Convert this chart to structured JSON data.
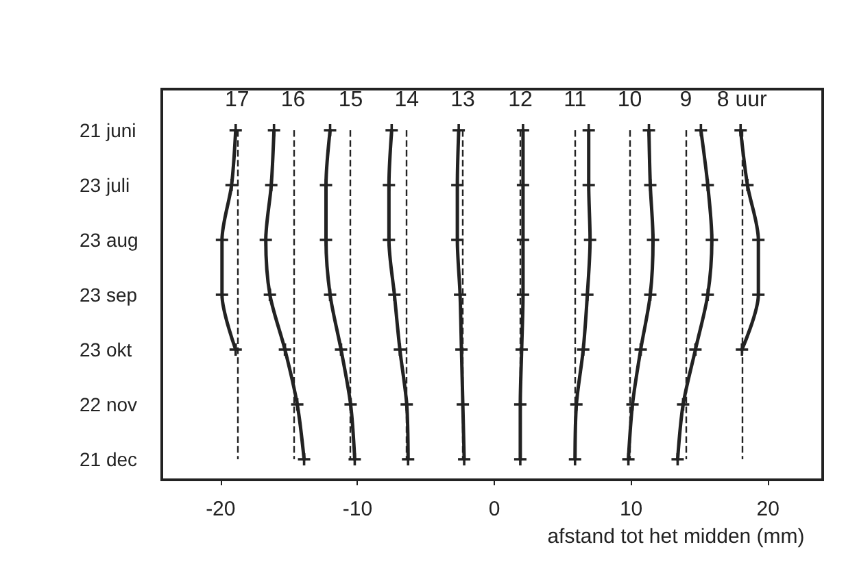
{
  "chart_data": {
    "type": "line",
    "orientation": "horizontal",
    "xlabel": "afstand tot het midden (mm)",
    "annotations": [
      "17",
      "16",
      "15",
      "14",
      "13",
      "12",
      "11",
      "10",
      "9",
      "8 uur"
    ],
    "categories": [
      "21 juni",
      "23 juli",
      "23 aug",
      "23 sep",
      "23 okt",
      "22 nov",
      "21 dec"
    ],
    "series": [
      {
        "color": "#222222",
        "values": [
          -18.9,
          -19.2,
          -19.9,
          -19.9,
          -18.9,
          null,
          null
        ]
      },
      {
        "color": "#222222",
        "values": [
          -16.1,
          -16.3,
          -16.7,
          -16.4,
          -15.3,
          -14.4,
          -13.9
        ]
      },
      {
        "color": "#222222",
        "values": [
          -12.0,
          -12.3,
          -12.3,
          -12.0,
          -11.2,
          -10.5,
          -10.2
        ]
      },
      {
        "color": "#222222",
        "values": [
          -7.5,
          -7.7,
          -7.7,
          -7.3,
          -6.9,
          -6.4,
          -6.3
        ]
      },
      {
        "color": "#222222",
        "values": [
          -2.6,
          -2.7,
          -2.7,
          -2.5,
          -2.4,
          -2.3,
          -2.2
        ]
      },
      {
        "color": "#222222",
        "values": [
          2.1,
          2.1,
          2.1,
          2.1,
          2.0,
          1.9,
          1.9
        ]
      },
      {
        "color": "#222222",
        "values": [
          6.9,
          6.9,
          7.0,
          6.8,
          6.5,
          6.0,
          5.9
        ]
      },
      {
        "color": "#222222",
        "values": [
          11.3,
          11.4,
          11.6,
          11.4,
          10.7,
          10.1,
          9.8
        ]
      },
      {
        "color": "#222222",
        "values": [
          15.1,
          15.6,
          15.9,
          15.6,
          14.7,
          13.8,
          13.4
        ]
      },
      {
        "color": "#222222",
        "values": [
          18.0,
          18.5,
          19.3,
          19.3,
          18.1,
          null,
          null
        ]
      }
    ],
    "xlim": [
      -24.3,
      24
    ],
    "xticks": [
      -20,
      -10,
      0,
      10,
      20
    ],
    "ref_lines": [
      {
        "axis": "x",
        "value": -18.8,
        "color": "#222222",
        "line_style": "dashed"
      },
      {
        "axis": "x",
        "value": -14.7,
        "color": "#222222",
        "line_style": "dashed"
      },
      {
        "axis": "x",
        "value": -10.5,
        "color": "#222222",
        "line_style": "dashed"
      },
      {
        "axis": "x",
        "value": -6.4,
        "color": "#222222",
        "line_style": "dashed"
      },
      {
        "axis": "x",
        "value": -2.3,
        "color": "#222222",
        "line_style": "dashed"
      },
      {
        "axis": "x",
        "value": 1.9,
        "color": "#222222",
        "line_style": "dashed"
      },
      {
        "axis": "x",
        "value": 5.9,
        "color": "#222222",
        "line_style": "dashed"
      },
      {
        "axis": "x",
        "value": 9.9,
        "color": "#222222",
        "line_style": "dashed"
      },
      {
        "axis": "x",
        "value": 14.0,
        "color": "#222222",
        "line_style": "dashed"
      },
      {
        "axis": "x",
        "value": 18.1,
        "color": "#222222",
        "line_style": "dashed"
      }
    ],
    "grid": false,
    "marker": "cross",
    "line_style": "solid"
  }
}
